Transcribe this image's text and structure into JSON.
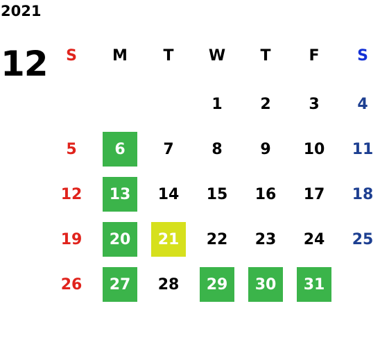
{
  "year": "2021",
  "month": "12",
  "weekdays": [
    "S",
    "M",
    "T",
    "W",
    "T",
    "F",
    "S"
  ],
  "days": [
    "1",
    "2",
    "3",
    "4",
    "5",
    "6",
    "7",
    "8",
    "9",
    "10",
    "11",
    "12",
    "13",
    "14",
    "15",
    "16",
    "17",
    "18",
    "19",
    "20",
    "21",
    "22",
    "23",
    "24",
    "25",
    "26",
    "27",
    "28",
    "29",
    "30",
    "31"
  ],
  "colors": {
    "sunday_red": "#e0231c",
    "saturday_blue": "#1d3f91",
    "highlight_green": "#3bb44a",
    "highlight_yellow": "#d6e01d"
  }
}
